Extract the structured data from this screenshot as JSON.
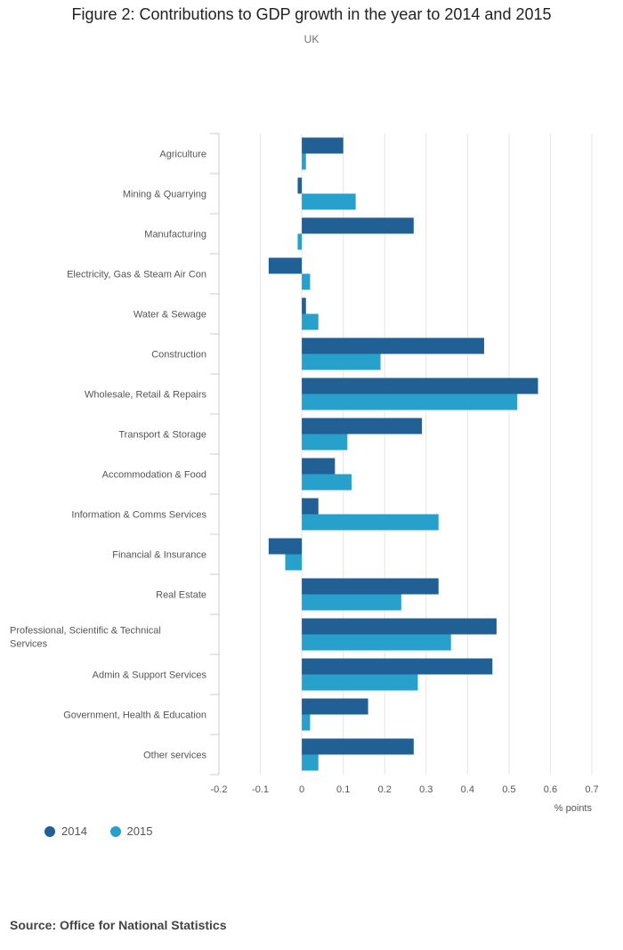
{
  "chart_data": {
    "type": "bar",
    "orientation": "horizontal",
    "title": "Figure 2: Contributions to GDP growth in the year to 2014 and 2015",
    "subtitle": "UK",
    "xlabel": "% points",
    "xlim": [
      -0.2,
      0.7
    ],
    "xticks": [
      "-0.2",
      "-0.1",
      "0",
      "0.1",
      "0.2",
      "0.3",
      "0.4",
      "0.5",
      "0.6",
      "0.7"
    ],
    "xtick_values": [
      -0.2,
      -0.1,
      0,
      0.1,
      0.2,
      0.3,
      0.4,
      0.5,
      0.6,
      0.7
    ],
    "grid": true,
    "legend_position": "bottom-left",
    "categories": [
      "Agriculture",
      "Mining & Quarrying",
      "Manufacturing",
      "Electricity, Gas & Steam Air Con",
      "Water & Sewage",
      "Construction",
      "Wholesale, Retail & Repairs",
      "Transport & Storage",
      "Accommodation & Food",
      "Information & Comms Services",
      "Financial & Insurance",
      "Real Estate",
      "Professional, Scientific & Technical Services",
      "Admin & Support Services",
      "Government, Health & Education",
      "Other services"
    ],
    "series": [
      {
        "name": "2014",
        "color": "#206095",
        "values": [
          0.1,
          -0.01,
          0.27,
          -0.08,
          0.01,
          0.44,
          0.57,
          0.29,
          0.08,
          0.04,
          -0.08,
          0.33,
          0.47,
          0.46,
          0.16,
          0.27
        ]
      },
      {
        "name": "2015",
        "color": "#27a0cc",
        "values": [
          0.01,
          0.13,
          -0.01,
          0.02,
          0.04,
          0.19,
          0.52,
          0.11,
          0.12,
          0.33,
          -0.04,
          0.24,
          0.36,
          0.28,
          0.02,
          0.04
        ]
      }
    ]
  },
  "source": "Source: Office for National Statistics"
}
